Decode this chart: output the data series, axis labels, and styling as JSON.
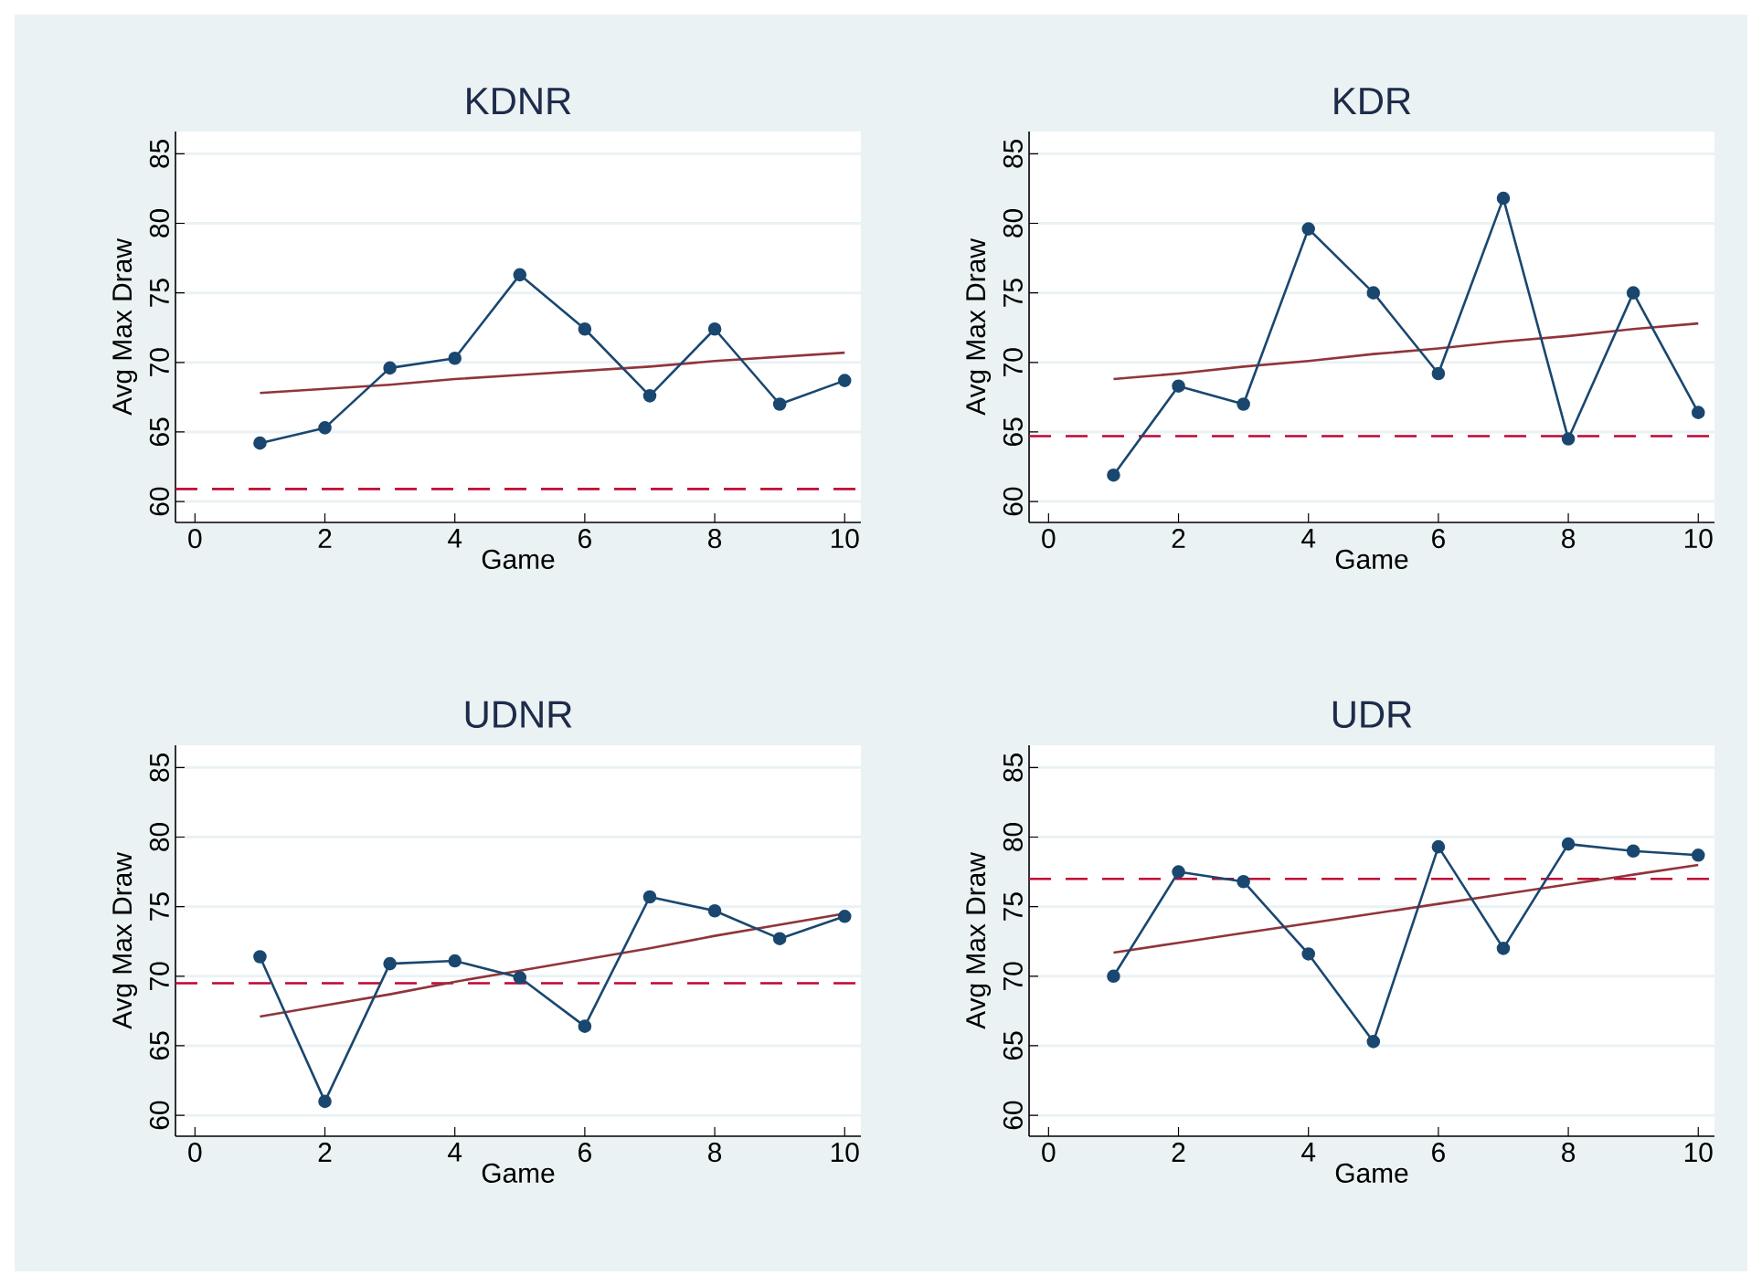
{
  "chart_data": [
    {
      "type": "line",
      "title": "KDNR",
      "xlabel": "Game",
      "ylabel": "Avg Max Draw",
      "x": [
        1,
        2,
        3,
        4,
        5,
        6,
        7,
        8,
        9,
        10
      ],
      "xlim": [
        -0.3,
        10.25
      ],
      "ylim": [
        58.5,
        86.6
      ],
      "xticks": [
        0,
        2,
        4,
        6,
        8,
        10
      ],
      "yticks": [
        60,
        65,
        70,
        75,
        80,
        85
      ],
      "grid": "y",
      "series": [
        {
          "color": "#1a476f",
          "marker": "circle",
          "line_style": "solid",
          "values": [
            64.2,
            65.3,
            69.6,
            70.3,
            76.3,
            72.4,
            67.6,
            72.4,
            67.0,
            68.7
          ]
        },
        {
          "type": "line",
          "color": "#90353b",
          "marker": "none",
          "line_style": "solid",
          "values": [
            67.8,
            68.1,
            68.4,
            68.8,
            69.1,
            69.4,
            69.7,
            70.1,
            70.4,
            70.7
          ]
        }
      ],
      "ref_lines": [
        {
          "axis": "y",
          "value": 60.9,
          "color": "#c10534",
          "line_style": "dashed"
        }
      ]
    },
    {
      "type": "line",
      "title": "KDR",
      "xlabel": "Game",
      "ylabel": "Avg Max Draw",
      "x": [
        1,
        2,
        3,
        4,
        5,
        6,
        7,
        8,
        9,
        10
      ],
      "xlim": [
        -0.3,
        10.25
      ],
      "ylim": [
        58.5,
        86.6
      ],
      "xticks": [
        0,
        2,
        4,
        6,
        8,
        10
      ],
      "yticks": [
        60,
        65,
        70,
        75,
        80,
        85
      ],
      "grid": "y",
      "series": [
        {
          "color": "#1a476f",
          "marker": "circle",
          "line_style": "solid",
          "values": [
            61.9,
            68.3,
            67.0,
            79.6,
            75.0,
            69.2,
            81.8,
            64.5,
            75.0,
            66.4
          ]
        },
        {
          "type": "line",
          "color": "#90353b",
          "marker": "none",
          "line_style": "solid",
          "values": [
            68.8,
            69.2,
            69.7,
            70.1,
            70.6,
            71.0,
            71.5,
            71.9,
            72.4,
            72.8
          ]
        }
      ],
      "ref_lines": [
        {
          "axis": "y",
          "value": 64.7,
          "color": "#c10534",
          "line_style": "dashed"
        }
      ]
    },
    {
      "type": "line",
      "title": "UDNR",
      "xlabel": "Game",
      "ylabel": "Avg Max Draw",
      "x": [
        1,
        2,
        3,
        4,
        5,
        6,
        7,
        8,
        9,
        10
      ],
      "xlim": [
        -0.3,
        10.25
      ],
      "ylim": [
        58.5,
        86.6
      ],
      "xticks": [
        0,
        2,
        4,
        6,
        8,
        10
      ],
      "yticks": [
        60,
        65,
        70,
        75,
        80,
        85
      ],
      "grid": "y",
      "series": [
        {
          "color": "#1a476f",
          "marker": "circle",
          "line_style": "solid",
          "values": [
            71.4,
            61.0,
            70.9,
            71.1,
            69.9,
            66.4,
            75.7,
            74.7,
            72.7,
            74.3
          ]
        },
        {
          "type": "line",
          "color": "#90353b",
          "marker": "none",
          "line_style": "solid",
          "values": [
            67.1,
            67.9,
            68.7,
            69.6,
            70.4,
            71.2,
            72.0,
            72.9,
            73.7,
            74.5
          ]
        }
      ],
      "ref_lines": [
        {
          "axis": "y",
          "value": 69.5,
          "color": "#c10534",
          "line_style": "dashed"
        }
      ]
    },
    {
      "type": "line",
      "title": "UDR",
      "xlabel": "Game",
      "ylabel": "Avg Max Draw",
      "x": [
        1,
        2,
        3,
        4,
        5,
        6,
        7,
        8,
        9,
        10
      ],
      "xlim": [
        -0.3,
        10.25
      ],
      "ylim": [
        58.5,
        86.6
      ],
      "xticks": [
        0,
        2,
        4,
        6,
        8,
        10
      ],
      "yticks": [
        60,
        65,
        70,
        75,
        80,
        85
      ],
      "grid": "y",
      "series": [
        {
          "color": "#1a476f",
          "marker": "circle",
          "line_style": "solid",
          "values": [
            70.0,
            77.5,
            76.8,
            71.6,
            65.3,
            79.3,
            72.0,
            79.5,
            79.0,
            78.7
          ]
        },
        {
          "type": "line",
          "color": "#90353b",
          "marker": "none",
          "line_style": "solid",
          "values": [
            71.7,
            72.4,
            73.1,
            73.8,
            74.5,
            75.2,
            75.9,
            76.6,
            77.3,
            78.0
          ]
        }
      ],
      "ref_lines": [
        {
          "axis": "y",
          "value": 77.0,
          "color": "#c10534",
          "line_style": "dashed"
        }
      ]
    }
  ]
}
